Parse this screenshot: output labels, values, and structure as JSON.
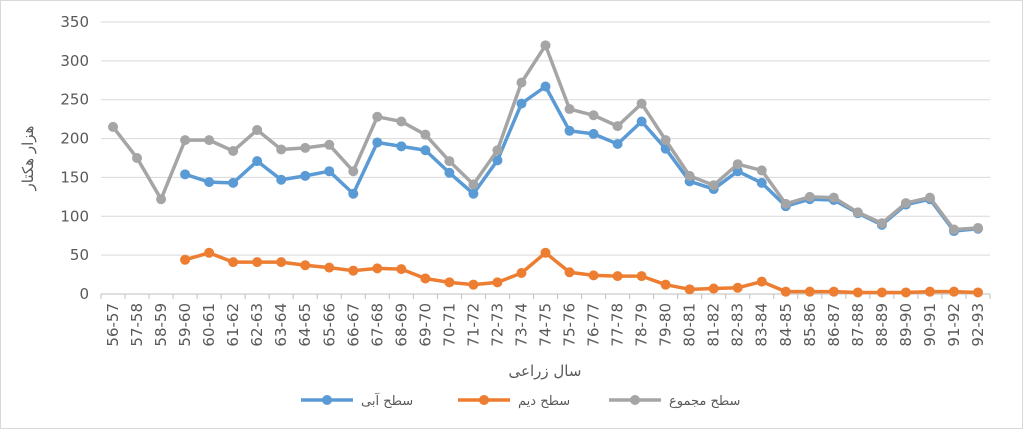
{
  "chart_data": {
    "type": "line",
    "xlabel": "سال زراعی",
    "ylabel": "هزار هکتار",
    "ylim": [
      0,
      350
    ],
    "yticks": [
      0,
      50,
      100,
      150,
      200,
      250,
      300,
      350
    ],
    "grid": true,
    "legend_position": "bottom",
    "categories": [
      "56-57",
      "57-58",
      "58-59",
      "59-60",
      "60-61",
      "61-62",
      "62-63",
      "63-64",
      "64-65",
      "65-66",
      "66-67",
      "67-68",
      "68-69",
      "69-70",
      "70-71",
      "71-72",
      "72-73",
      "73-74",
      "74-75",
      "75-76",
      "76-77",
      "77-78",
      "78-79",
      "79-80",
      "80-81",
      "81-82",
      "82-83",
      "83-84",
      "84-85",
      "85-86",
      "86-87",
      "87-88",
      "88-89",
      "89-90",
      "90-91",
      "91-92",
      "92-93"
    ],
    "series": [
      {
        "name": "سطح آبی",
        "color": "#5b9bd5",
        "values": [
          null,
          null,
          null,
          154,
          144,
          143,
          171,
          147,
          152,
          158,
          129,
          195,
          190,
          185,
          156,
          129,
          172,
          245,
          267,
          210,
          206,
          193,
          222,
          187,
          145,
          135,
          158,
          143,
          113,
          122,
          121,
          104,
          89,
          115,
          122,
          81,
          84
        ]
      },
      {
        "name": "سطح دیم",
        "color": "#ed7d31",
        "values": [
          null,
          null,
          null,
          44,
          53,
          41,
          41,
          41,
          37,
          34,
          30,
          33,
          32,
          20,
          15,
          12,
          15,
          27,
          53,
          28,
          24,
          23,
          23,
          12,
          6,
          7,
          8,
          16,
          3,
          3,
          3,
          2,
          2,
          2,
          3,
          3,
          2
        ]
      },
      {
        "name": "سطح مجموع",
        "color": "#a5a5a5",
        "values": [
          215,
          175,
          122,
          198,
          198,
          184,
          211,
          186,
          188,
          192,
          158,
          228,
          222,
          205,
          171,
          141,
          185,
          272,
          320,
          238,
          230,
          216,
          245,
          198,
          152,
          140,
          167,
          159,
          116,
          125,
          124,
          105,
          91,
          117,
          124,
          83,
          85
        ]
      }
    ]
  }
}
